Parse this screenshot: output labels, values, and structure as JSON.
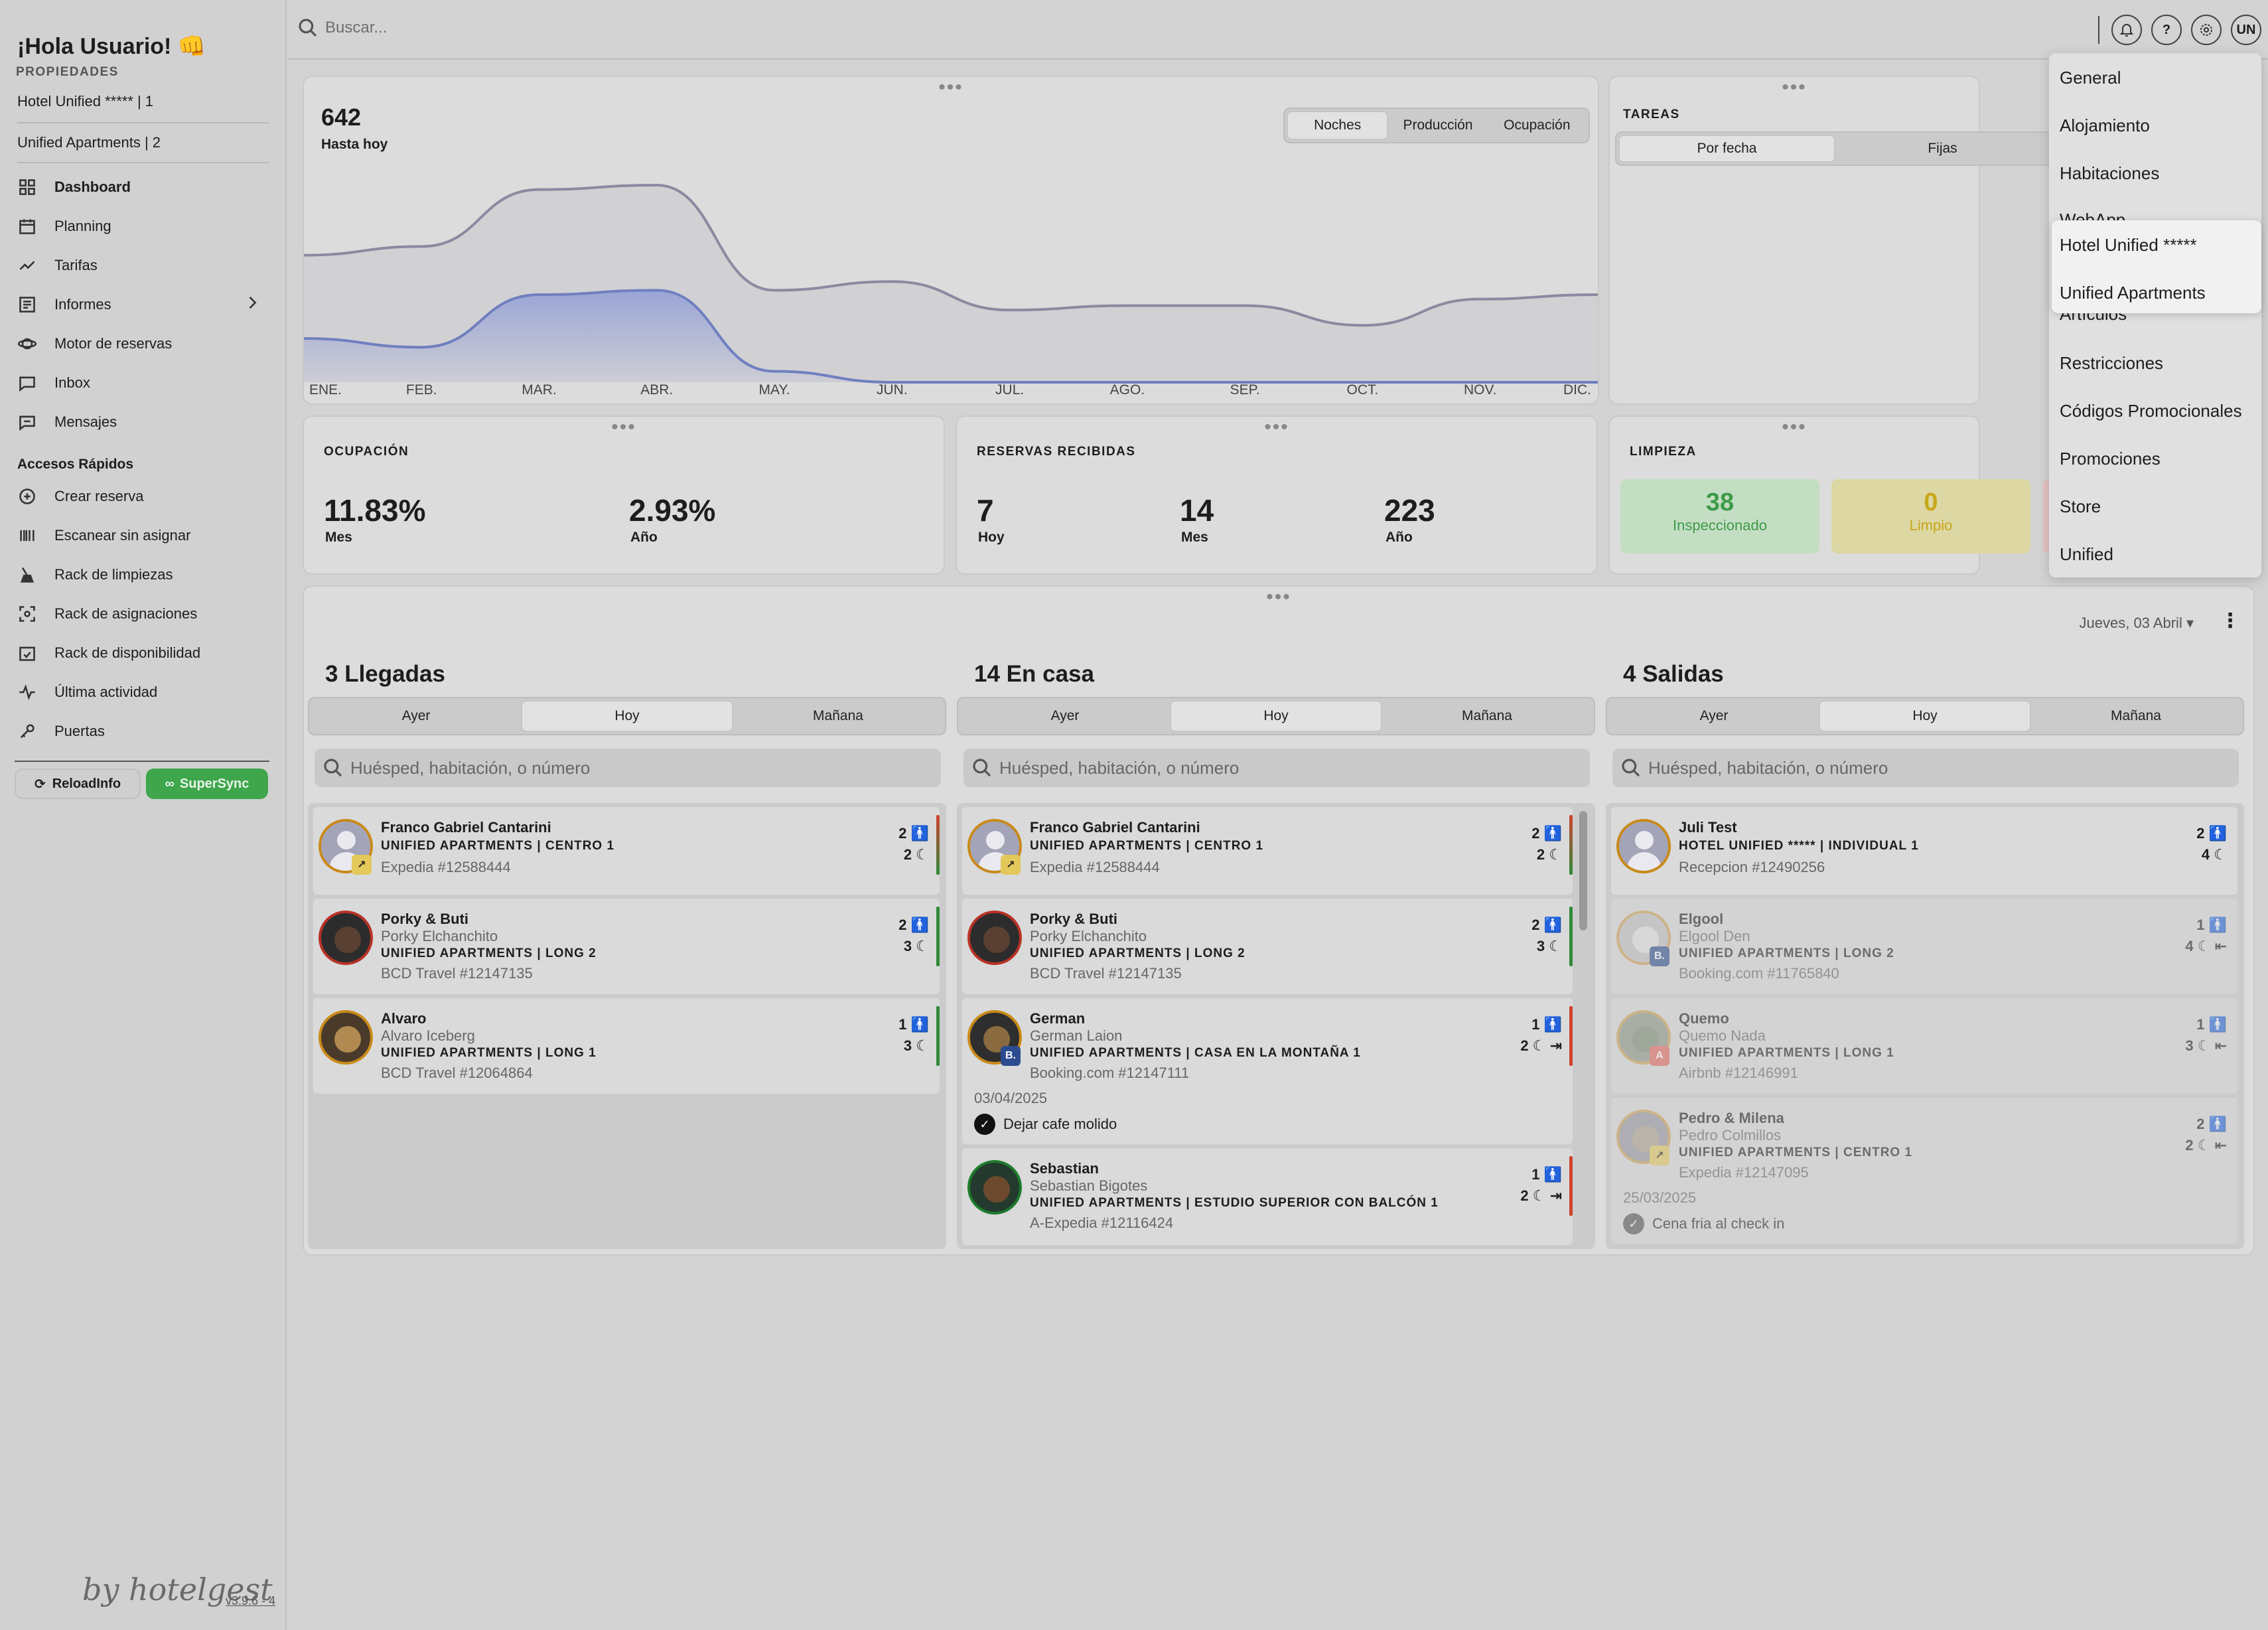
{
  "sidebar": {
    "greeting": "¡Hola Usuario! 👊",
    "properties_label": "PROPIEDADES",
    "properties": [
      "Hotel Unified ***** | 1",
      "Unified Apartments | 2"
    ],
    "nav": [
      {
        "label": "Dashboard",
        "icon": "grid-icon"
      },
      {
        "label": "Planning",
        "icon": "calendar-icon"
      },
      {
        "label": "Tarifas",
        "icon": "trend-icon"
      },
      {
        "label": "Informes",
        "icon": "report-icon"
      },
      {
        "label": "Motor de reservas",
        "icon": "planet-icon"
      },
      {
        "label": "Inbox",
        "icon": "chat-icon"
      },
      {
        "label": "Mensajes",
        "icon": "message-icon"
      }
    ],
    "quick_title": "Accesos Rápidos",
    "quick": [
      {
        "label": "Crear reserva",
        "icon": "plus-circle-icon"
      },
      {
        "label": "Escanear sin asignar",
        "icon": "barcode-icon"
      },
      {
        "label": "Rack de limpiezas",
        "icon": "broom-icon"
      },
      {
        "label": "Rack de asignaciones",
        "icon": "scan-icon"
      },
      {
        "label": "Rack de disponibilidad",
        "icon": "calendar-check-icon"
      },
      {
        "label": "Última actividad",
        "icon": "pulse-icon"
      },
      {
        "label": "Puertas",
        "icon": "key-icon"
      }
    ],
    "reload_label": "ReloadInfo",
    "sync_label": "SuperSync",
    "brand": "by hotelgest",
    "version": "v3.9.6 - 4"
  },
  "topbar": {
    "search_placeholder": "Buscar...",
    "avatar_initials": "UN"
  },
  "chart_card": {
    "value": "642",
    "value_label": "Hasta hoy",
    "tabs": [
      "Noches",
      "Producción",
      "Ocupación"
    ]
  },
  "chart_data": {
    "type": "area",
    "categories": [
      "ENE.",
      "FEB.",
      "MAR.",
      "ABR.",
      "MAY.",
      "JUN.",
      "JUL.",
      "AGO.",
      "SEP.",
      "OCT.",
      "NOV.",
      "DIC."
    ],
    "series": [
      {
        "values": [
          58,
          62,
          88,
          90,
          42,
          46,
          33,
          35,
          35,
          26,
          38,
          40
        ],
        "color": "#8a8aa0"
      },
      {
        "values": [
          20,
          16,
          40,
          42,
          5,
          0,
          0,
          0,
          0,
          0,
          0,
          0
        ],
        "color": "#6f7fc0"
      }
    ],
    "ylim": [
      0,
      100
    ],
    "grid": false
  },
  "tasks_card": {
    "title": "TAREAS",
    "tabs": [
      "Por fecha",
      "Fijas"
    ]
  },
  "ocupacion": {
    "title": "OCUPACIÓN",
    "stats": [
      {
        "value": "11.83%",
        "label": "Mes"
      },
      {
        "value": "2.93%",
        "label": "Año"
      }
    ]
  },
  "reservas": {
    "title": "RESERVAS RECIBIDAS",
    "stats": [
      {
        "value": "7",
        "label": "Hoy"
      },
      {
        "value": "14",
        "label": "Mes"
      },
      {
        "value": "223",
        "label": "Año"
      }
    ]
  },
  "limpieza": {
    "title": "LIMPIEZA",
    "stats": [
      {
        "value": "38",
        "label": "Inspeccionado"
      },
      {
        "value": "0",
        "label": "Limpio"
      }
    ]
  },
  "board": {
    "date": "Jueves, 03 Abril",
    "search_placeholder": "Huésped, habitación, o número",
    "day_tabs": [
      "Ayer",
      "Hoy",
      "Mañana"
    ],
    "columns": [
      {
        "title": "3 Llegadas",
        "items": [
          {
            "name": "Franco Gabriel Cantarini",
            "alias": "",
            "unit": "UNIFIED APARTMENTS | CENTRO 1",
            "source": "Expedia #12588444",
            "guests": "2",
            "nights": "2"
          },
          {
            "name": "Porky & Buti",
            "alias": "Porky Elchanchito",
            "unit": "UNIFIED APARTMENTS | LONG 2",
            "source": "BCD Travel #12147135",
            "guests": "2",
            "nights": "3"
          },
          {
            "name": "Alvaro",
            "alias": "Alvaro Iceberg",
            "unit": "UNIFIED APARTMENTS | LONG 1",
            "source": "BCD Travel #12064864",
            "guests": "1",
            "nights": "3"
          }
        ]
      },
      {
        "title": "14 En casa",
        "items": [
          {
            "name": "Franco Gabriel Cantarini",
            "alias": "",
            "unit": "UNIFIED APARTMENTS | CENTRO 1",
            "source": "Expedia #12588444",
            "guests": "2",
            "nights": "2"
          },
          {
            "name": "Porky & Buti",
            "alias": "Porky Elchanchito",
            "unit": "UNIFIED APARTMENTS | LONG 2",
            "source": "BCD Travel #12147135",
            "guests": "2",
            "nights": "3"
          },
          {
            "name": "German",
            "alias": "German Laion",
            "unit": "UNIFIED APARTMENTS | CASA EN LA MONTAÑA 1",
            "source": "Booking.com #12147111",
            "guests": "1",
            "nights": "2",
            "note_date": "03/04/2025",
            "note": "Dejar cafe molido"
          },
          {
            "name": "Sebastian",
            "alias": "Sebastian Bigotes",
            "unit": "UNIFIED APARTMENTS | ESTUDIO SUPERIOR CON BALCÓN 1",
            "source": "A-Expedia #12116424",
            "guests": "1",
            "nights": "2"
          }
        ]
      },
      {
        "title": "4 Salidas",
        "items": [
          {
            "name": "Juli Test",
            "alias": "",
            "unit": "HOTEL UNIFIED ***** | INDIVIDUAL 1",
            "source": "Recepcion #12490256",
            "guests": "2",
            "nights": "4"
          },
          {
            "name": "Elgool",
            "alias": "Elgool Den",
            "unit": "UNIFIED APARTMENTS | LONG 2",
            "source": "Booking.com #11765840",
            "guests": "1",
            "nights": "4"
          },
          {
            "name": "Quemo",
            "alias": "Quemo Nada",
            "unit": "UNIFIED APARTMENTS | LONG 1",
            "source": "Airbnb #12146991",
            "guests": "1",
            "nights": "3"
          },
          {
            "name": "Pedro & Milena",
            "alias": "Pedro Colmillos",
            "unit": "UNIFIED APARTMENTS | CENTRO 1",
            "source": "Expedia #12147095",
            "guests": "2",
            "nights": "2",
            "note_date": "25/03/2025",
            "note": "Cena fria al check in"
          }
        ]
      }
    ]
  },
  "settings_menu": {
    "items": [
      "General",
      "Alojamiento",
      "Habitaciones",
      "WebApp",
      "Artículos",
      "Restricciones",
      "Códigos Promocionales",
      "Promociones",
      "Store",
      "Unified"
    ],
    "submenu": [
      "Hotel Unified *****",
      "Unified Apartments"
    ]
  }
}
